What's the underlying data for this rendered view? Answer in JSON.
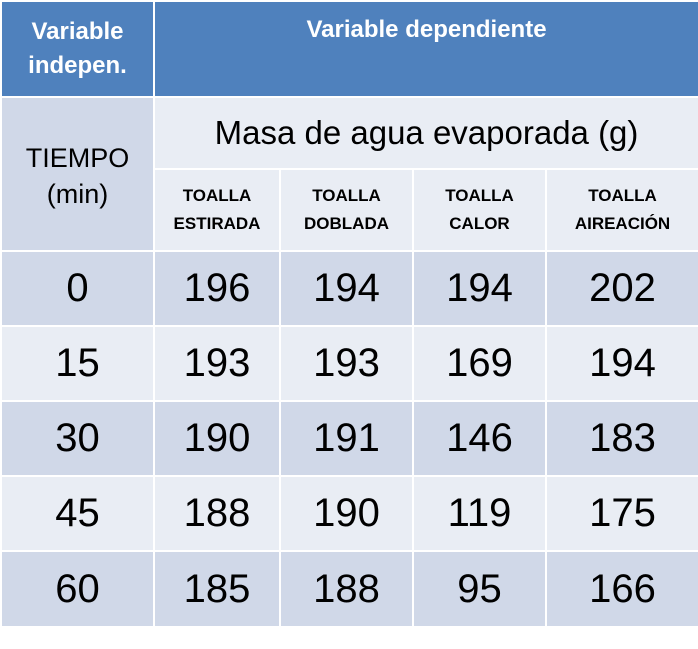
{
  "header": {
    "independent_line1": "Variable",
    "independent_line2": "indepen.",
    "dependent": "Variable dependiente"
  },
  "time_header": {
    "line1": "TIEMPO",
    "line2": "(min)"
  },
  "measure_header": "Masa de agua evaporada (g)",
  "columns": [
    {
      "line1": "TOALLA",
      "line2": "ESTIRADA"
    },
    {
      "line1": "TOALLA",
      "line2": "DOBLADA"
    },
    {
      "line1": "TOALLA",
      "line2": "CALOR"
    },
    {
      "line1": "TOALLA",
      "line2": "AIREACIÓN"
    }
  ],
  "rows": [
    {
      "time": "0",
      "values": [
        "196",
        "194",
        "194",
        "202"
      ]
    },
    {
      "time": "15",
      "values": [
        "193",
        "193",
        "169",
        "194"
      ]
    },
    {
      "time": "30",
      "values": [
        "190",
        "191",
        "146",
        "183"
      ]
    },
    {
      "time": "45",
      "values": [
        "188",
        "190",
        "119",
        "175"
      ]
    },
    {
      "time": "60",
      "values": [
        "185",
        "188",
        "95",
        "166"
      ]
    }
  ],
  "colors": {
    "header_blue": "#4f81bd",
    "row_dark": "#d0d8e8",
    "row_light": "#e9edf4"
  }
}
